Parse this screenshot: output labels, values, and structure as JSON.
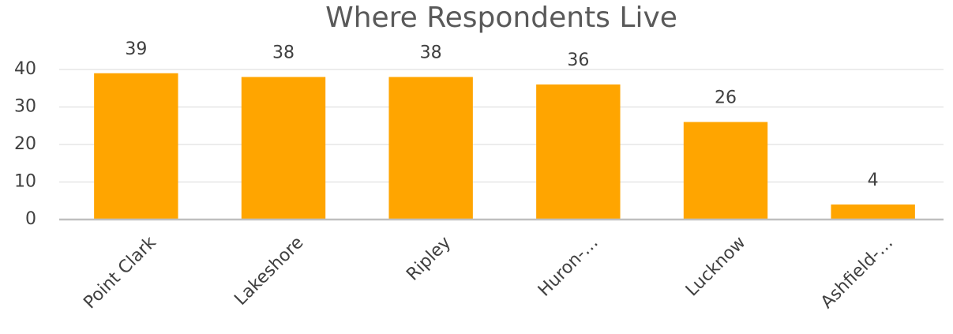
{
  "chart_data": {
    "type": "bar",
    "title": "Where Respondents Live",
    "categories": [
      "Point Clark",
      "Lakeshore",
      "Ripley",
      "Huron-…",
      "Lucknow",
      "Ashfield-…"
    ],
    "values": [
      39,
      38,
      38,
      36,
      26,
      4
    ],
    "color": "#ffa500",
    "ylim": [
      0,
      40
    ],
    "yticks": [
      0,
      10,
      20,
      30,
      40
    ],
    "grid": true
  }
}
